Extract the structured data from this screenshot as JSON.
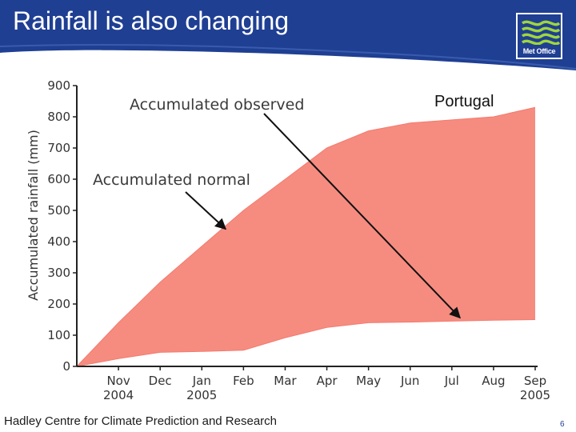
{
  "slide": {
    "title": "Rainfall is also changing",
    "footer": "Hadley Centre for Climate Prediction and Research",
    "page_number": "6",
    "logo_text": "Met Office",
    "colors": {
      "header": "#1f3f93",
      "fill": "#f68c80",
      "axis": "#222222"
    }
  },
  "chart_data": {
    "type": "area",
    "title": "",
    "region_label": "Portugal",
    "ylabel": "Accumulated rainfall (mm)",
    "xlabel": "",
    "ylim": [
      0,
      900
    ],
    "yticks": [
      0,
      100,
      200,
      300,
      400,
      500,
      600,
      700,
      800,
      900
    ],
    "xticks": [
      {
        "label": "Nov",
        "sub": "2004"
      },
      {
        "label": "Dec",
        "sub": ""
      },
      {
        "label": "Jan",
        "sub": "2005"
      },
      {
        "label": "Feb",
        "sub": ""
      },
      {
        "label": "Mar",
        "sub": ""
      },
      {
        "label": "Apr",
        "sub": ""
      },
      {
        "label": "May",
        "sub": ""
      },
      {
        "label": "Jun",
        "sub": ""
      },
      {
        "label": "Jul",
        "sub": ""
      },
      {
        "label": "Aug",
        "sub": ""
      },
      {
        "label": "Sep",
        "sub": "2005"
      }
    ],
    "grid": false,
    "series": [
      {
        "name": "Accumulated normal",
        "x": [
          0,
          1,
          2,
          3,
          4,
          5,
          6,
          7,
          8,
          9,
          10,
          11
        ],
        "values": [
          0,
          140,
          270,
          385,
          500,
          600,
          700,
          755,
          780,
          790,
          800,
          830
        ]
      },
      {
        "name": "Accumulated observed",
        "x": [
          0,
          1,
          2,
          3,
          4,
          5,
          6,
          7,
          8,
          9,
          10,
          11
        ],
        "values": [
          0,
          25,
          45,
          48,
          52,
          92,
          125,
          140,
          142,
          145,
          148,
          150
        ]
      }
    ]
  }
}
